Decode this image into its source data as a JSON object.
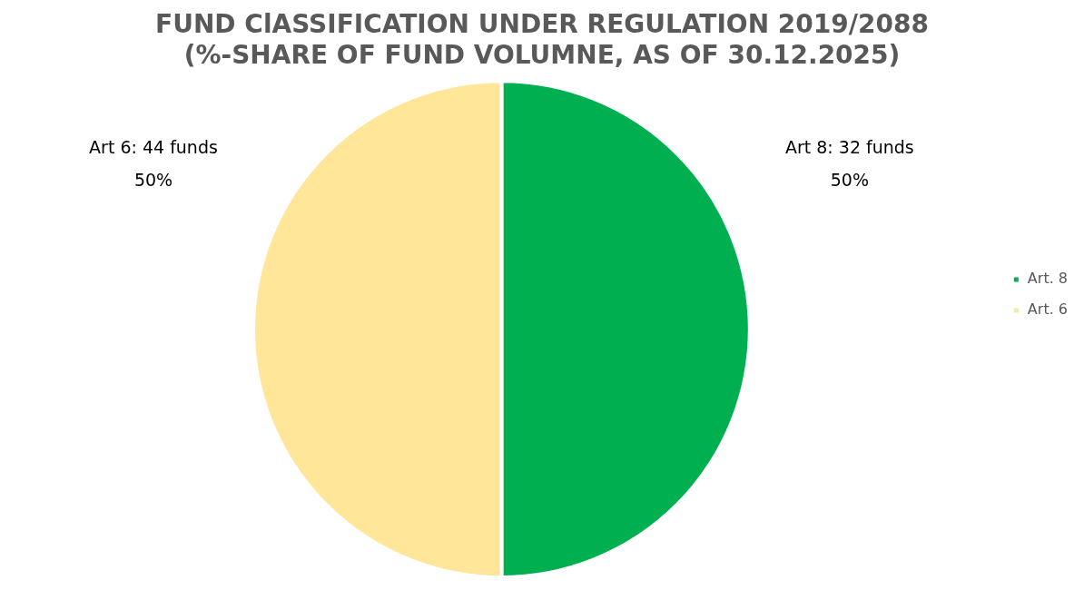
{
  "chart_data": {
    "type": "pie",
    "title": [
      "FUND ClASSIFICATION UNDER REGULATION 2019/2088",
      "(%-SHARE OF FUND VOLUMNE, AS OF 30.12.2025)"
    ],
    "categories": [
      "Art. 8",
      "Art. 6"
    ],
    "values": [
      50,
      50
    ],
    "colors": [
      "#00b050",
      "#ffe699"
    ],
    "value_labels": [
      "Art 8: 32 funds\n50%",
      "Art 6: 44 funds\n50%"
    ],
    "legend": "right"
  }
}
